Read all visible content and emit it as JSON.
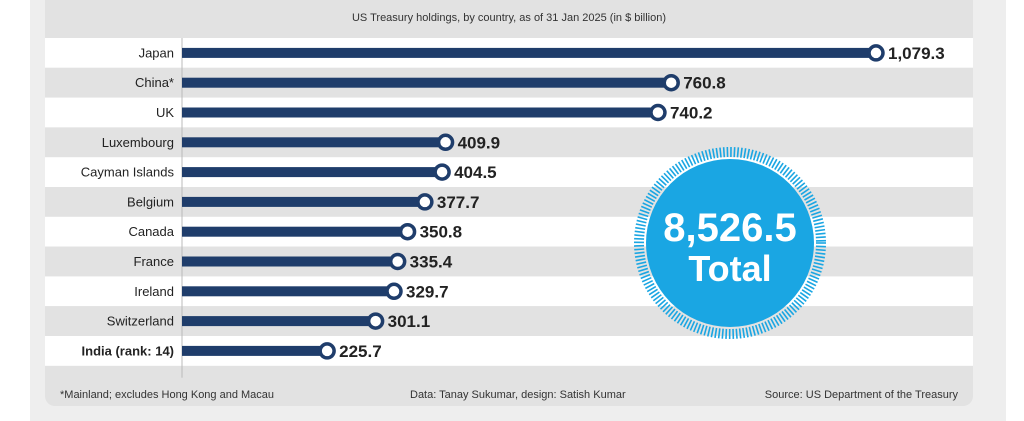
{
  "chart_data": {
    "type": "bar",
    "orientation": "horizontal",
    "title": "US Treasury holdings, by country, as of 31 Jan 2025 (in $ billion)",
    "categories": [
      "Japan",
      "China*",
      "UK",
      "Luxembourg",
      "Cayman Islands",
      "Belgium",
      "Canada",
      "France",
      "Ireland",
      "Switzerland",
      "India (rank: 14)"
    ],
    "values": [
      1079.3,
      760.8,
      740.2,
      409.9,
      404.5,
      377.7,
      350.8,
      335.4,
      329.7,
      301.1,
      225.7
    ],
    "value_labels": [
      "1,079.3",
      "760.8",
      "740.2",
      "409.9",
      "404.5",
      "377.7",
      "350.8",
      "335.4",
      "329.7",
      "301.1",
      "225.7"
    ],
    "highlight_category": "India (rank: 14)",
    "total": {
      "value": "8,526.5",
      "label": "Total"
    },
    "xlim": [
      0,
      1079.3
    ],
    "grid": false,
    "colors": {
      "bar": "#1f3d6b",
      "total_circle": "#1aa6e3",
      "row_alt": "#e2e2e2"
    }
  },
  "footer": {
    "note": "*Mainland; excludes Hong Kong and Macau",
    "credit": "Data: Tanay Sukumar, design: Satish Kumar",
    "source": "Source: US Department of the Treasury"
  }
}
